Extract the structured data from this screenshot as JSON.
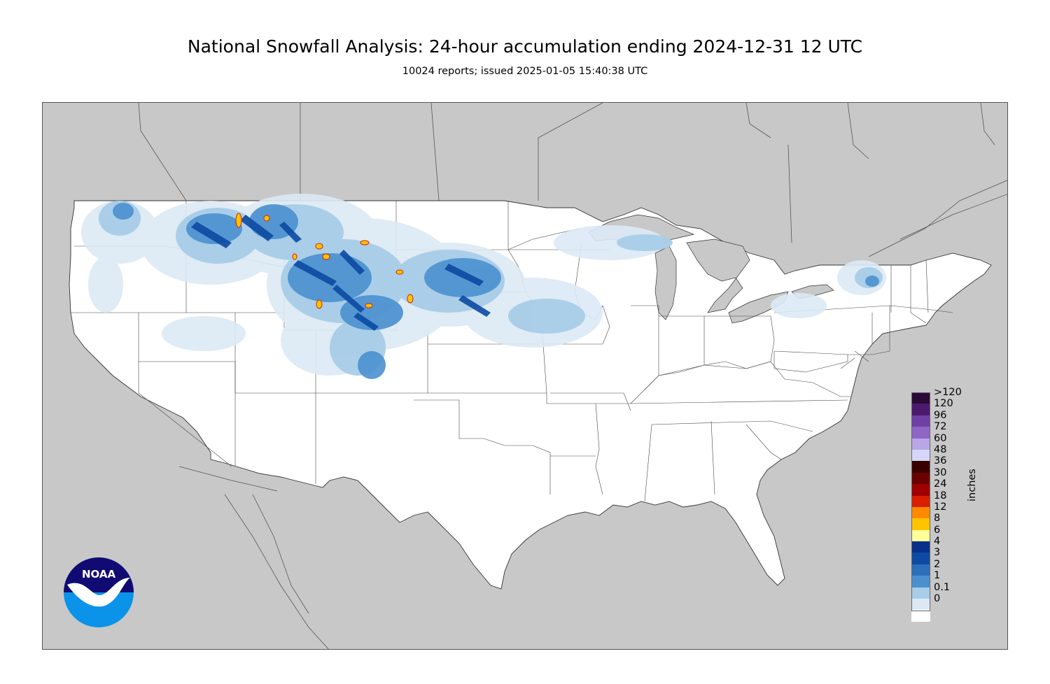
{
  "header": {
    "title": "National Snowfall Analysis: 24-hour accumulation ending 2024-12-31 12 UTC",
    "subtitle": "10024 reports; issued 2025-01-05 15:40:38 UTC"
  },
  "legend": {
    "units_label": "inches",
    "entries": [
      {
        "label": ">120",
        "color": "#2a0a36"
      },
      {
        "label": "120",
        "color": "#4b1a6e"
      },
      {
        "label": "96",
        "color": "#6f3fa6"
      },
      {
        "label": "72",
        "color": "#8e66c6"
      },
      {
        "label": "60",
        "color": "#b8a6e6"
      },
      {
        "label": "48",
        "color": "#d6d6fa"
      },
      {
        "label": "36",
        "color": "#3a0000"
      },
      {
        "label": "30",
        "color": "#6a0000"
      },
      {
        "label": "24",
        "color": "#a00000"
      },
      {
        "label": "18",
        "color": "#d82000"
      },
      {
        "label": "12",
        "color": "#ff8a00"
      },
      {
        "label": "8",
        "color": "#ffc400"
      },
      {
        "label": "6",
        "color": "#ffff99"
      },
      {
        "label": "4",
        "color": "#08308a"
      },
      {
        "label": "3",
        "color": "#0d4aa3"
      },
      {
        "label": "2",
        "color": "#2c6fb8"
      },
      {
        "label": "1",
        "color": "#4a90cf"
      },
      {
        "label": "0.1",
        "color": "#a8cde8"
      },
      {
        "label": "0",
        "color": "#dce9f5"
      },
      {
        "label": "",
        "color": "#ffffff"
      }
    ]
  },
  "map": {
    "background_color": "#c8c8c8",
    "land_color": "#ffffff",
    "snow_colors": {
      "trace": "#dce9f5",
      "light": "#a8cde8",
      "moderate": "#4a90cf",
      "heavy": "#2c6fb8",
      "very_heavy": "#0d4aa3",
      "extreme": "#08308a",
      "peak": "#ffc400"
    }
  },
  "logo": {
    "text": "NOAA",
    "colors": {
      "top": "#120a73",
      "bottom": "#0a93e8",
      "bird": "#ffffff"
    }
  }
}
